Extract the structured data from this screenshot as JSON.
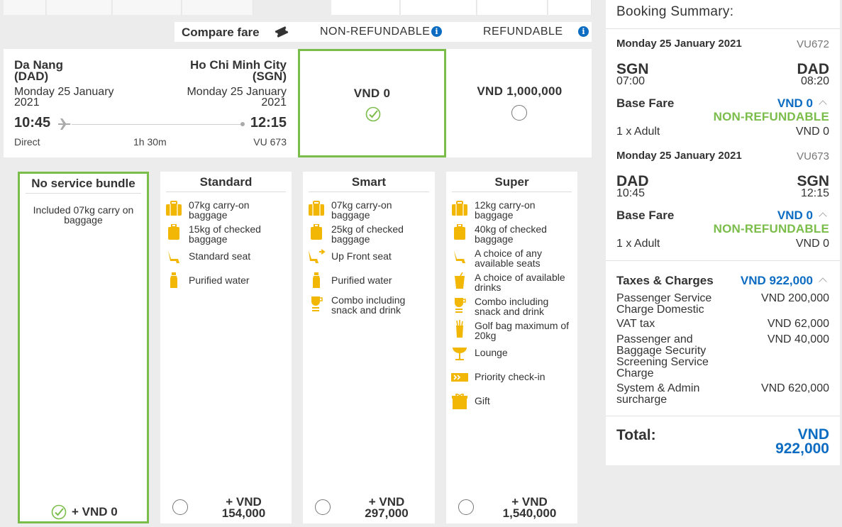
{
  "compare": {
    "label": "Compare fare",
    "fares": [
      "NON-REFUNDABLE",
      "REFUNDABLE"
    ]
  },
  "flight": {
    "origin_city": "Da Nang",
    "origin_code": "(DAD)",
    "dest_city": "Ho Chi Minh City",
    "dest_code": "(SGN)",
    "origin_date_1": "Monday 25 January",
    "origin_date_2": "2021",
    "dest_date_1": "Monday 25 January",
    "dest_date_2": "2021",
    "depart_time": "10:45",
    "arrive_time": "12:15",
    "stops": "Direct",
    "duration": "1h 30m",
    "flight_no": "VU 673",
    "fare_nonref_price": "VND 0",
    "fare_ref_price": "VND 1,000,000"
  },
  "bundles": [
    {
      "title": "No service bundle",
      "included": "Included 07kg carry on baggage",
      "price": "+ VND 0"
    },
    {
      "title": "Standard",
      "features": [
        "07kg carry-on baggage",
        "15kg of checked baggage",
        "Standard seat",
        "Purified water"
      ],
      "icons": [
        "carry-on-bag-icon",
        "checked-bag-icon",
        "seat-icon",
        "water-bottle-icon"
      ],
      "price_1": "+ VND",
      "price_2": "154,000"
    },
    {
      "title": "Smart",
      "features": [
        "07kg carry-on baggage",
        "25kg of checked baggage",
        "Up Front seat",
        "Purified water",
        "Combo including snack and drink"
      ],
      "icons": [
        "carry-on-bag-icon",
        "checked-bag-icon",
        "front-seat-icon",
        "water-bottle-icon",
        "combo-meal-icon"
      ],
      "price_1": "+ VND",
      "price_2": "297,000"
    },
    {
      "title": "Super",
      "features": [
        "12kg carry-on baggage",
        "40kg of checked baggage",
        "A choice of any available seats",
        "A choice of available drinks",
        "Combo including snack and drink",
        "Golf bag maximum of 20kg",
        "Lounge",
        "Priority check-in",
        "Gift"
      ],
      "icons": [
        "carry-on-bag-icon",
        "checked-bag-icon",
        "seat-icon",
        "drink-icon",
        "combo-meal-icon",
        "golf-bag-icon",
        "lounge-icon",
        "priority-checkin-icon",
        "gift-icon"
      ],
      "price_1": "+ VND",
      "price_2": "1,540,000"
    }
  ],
  "summary": {
    "title": "Booking Summary:",
    "legs": [
      {
        "date": "Monday 25 January 2021",
        "flight_no": "VU672",
        "from": "SGN",
        "to": "DAD",
        "from_time": "07:00",
        "to_time": "08:20",
        "base_fare_label": "Base Fare",
        "base_fare": "VND 0",
        "fare_type": "NON-REFUNDABLE",
        "pax": "1 x Adult",
        "pax_price": "VND 0"
      },
      {
        "date": "Monday 25 January 2021",
        "flight_no": "VU673",
        "from": "DAD",
        "to": "SGN",
        "from_time": "10:45",
        "to_time": "12:15",
        "base_fare_label": "Base Fare",
        "base_fare": "VND 0",
        "fare_type": "NON-REFUNDABLE",
        "pax": "1 x Adult",
        "pax_price": "VND 0"
      }
    ],
    "taxes_label": "Taxes & Charges",
    "taxes_total": "VND 922,000",
    "taxes": [
      {
        "label": "Passenger Service Charge Domestic",
        "value": "VND 200,000"
      },
      {
        "label": "VAT tax",
        "value": "VND 62,000"
      },
      {
        "label": "Passenger and Baggage Security Screening Service Charge",
        "value": "VND 40,000"
      },
      {
        "label": "System & Admin surcharge",
        "value": "VND 620,000"
      }
    ],
    "total_label": "Total:",
    "total_currency": "VND",
    "total_value": "922,000"
  },
  "colors": {
    "accent_blue": "#0c6cc2",
    "accent_green": "#7bbd4a",
    "icon_yellow": "#f2b705"
  }
}
